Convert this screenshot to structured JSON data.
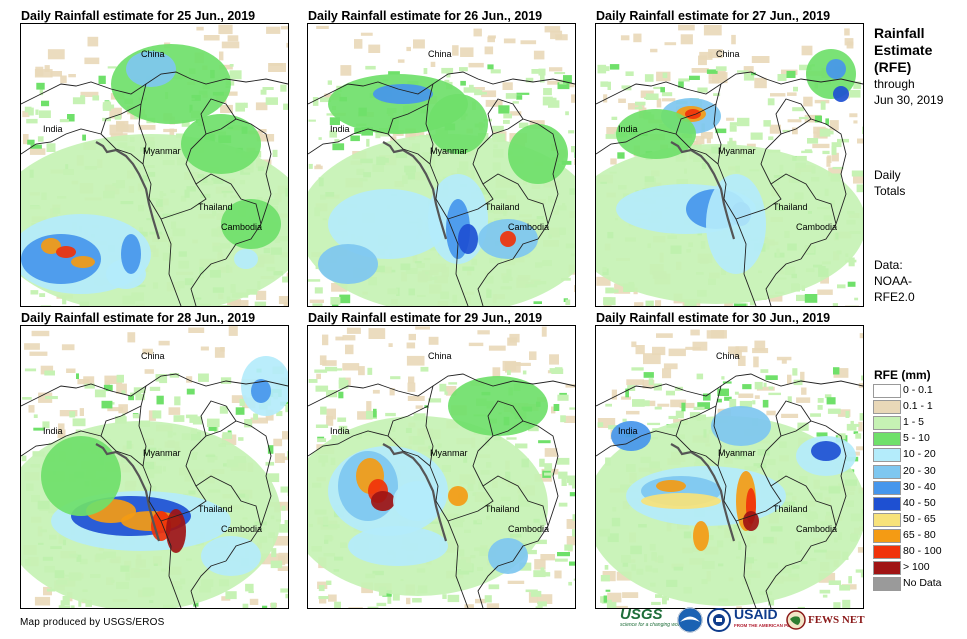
{
  "panels": [
    {
      "title": "Daily Rainfall estimate for 25 Jun., 2019",
      "labels": {
        "china": "China",
        "india": "India",
        "myanmar": "Myanmar",
        "thailand": "Thailand",
        "cambodia": "Cambodia"
      }
    },
    {
      "title": "Daily Rainfall estimate for 26 Jun., 2019",
      "labels": {
        "china": "China",
        "india": "India",
        "myanmar": "Myanmar",
        "thailand": "Thailand",
        "cambodia": "Cambodia"
      }
    },
    {
      "title": "Daily Rainfall estimate for 27 Jun., 2019",
      "labels": {
        "china": "China",
        "india": "India",
        "myanmar": "Myanmar",
        "thailand": "Thailand",
        "cambodia": "Cambodia"
      }
    },
    {
      "title": "Daily Rainfall estimate for 28 Jun., 2019",
      "labels": {
        "china": "China",
        "india": "India",
        "myanmar": "Myanmar",
        "thailand": "Thailand",
        "cambodia": "Cambodia"
      }
    },
    {
      "title": "Daily Rainfall estimate for 29 Jun., 2019",
      "labels": {
        "china": "China",
        "india": "India",
        "myanmar": "Myanmar",
        "thailand": "Thailand",
        "cambodia": "Cambodia"
      }
    },
    {
      "title": "Daily Rainfall estimate for 30 Jun., 2019",
      "labels": {
        "china": "China",
        "india": "India",
        "myanmar": "Myanmar",
        "thailand": "Thailand",
        "cambodia": "Cambodia"
      }
    }
  ],
  "side": {
    "title_line1": "Rainfall",
    "title_line2": "Estimate",
    "title_line3": "(RFE)",
    "through": "through",
    "date": "Jun 30, 2019",
    "daily1": "Daily",
    "daily2": "Totals",
    "data1": "Data:",
    "data2": "NOAA-",
    "data3": "RFE2.0"
  },
  "legend": {
    "title": "RFE (mm)",
    "items": [
      {
        "label": "0 - 0.1",
        "color": "#ffffff"
      },
      {
        "label": "0.1 - 1",
        "color": "#e9d8b8"
      },
      {
        "label": "1 - 5",
        "color": "#c6f2b4"
      },
      {
        "label": "5 - 10",
        "color": "#6fe06a"
      },
      {
        "label": "10 - 20",
        "color": "#b4ecfb"
      },
      {
        "label": "20 - 30",
        "color": "#7ec7f0"
      },
      {
        "label": "30 - 40",
        "color": "#4696ec"
      },
      {
        "label": "40 - 50",
        "color": "#1e50d2"
      },
      {
        "label": "50 - 65",
        "color": "#f7e27a"
      },
      {
        "label": "65 - 80",
        "color": "#f49b14"
      },
      {
        "label": "80 - 100",
        "color": "#f0320a"
      },
      {
        "label": "> 100",
        "color": "#a01414"
      },
      {
        "label": "No Data",
        "color": "#9a9a9a"
      }
    ]
  },
  "footer": "Map produced by USGS/EROS",
  "logos": {
    "usgs": "USGS",
    "usgs_tagline": "science for a changing world",
    "usaid": "USAID",
    "usaid_tagline": "FROM THE AMERICAN PEOPLE",
    "fews": "FEWS NET"
  }
}
